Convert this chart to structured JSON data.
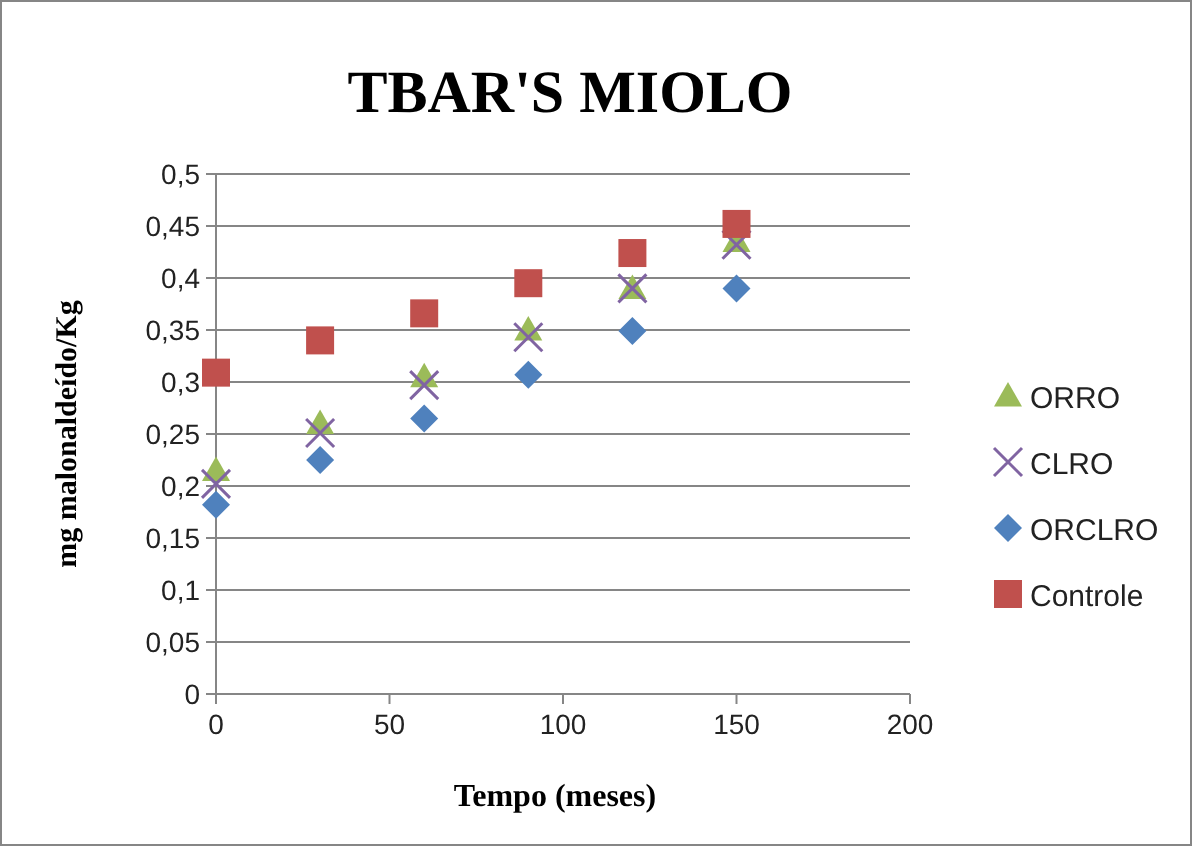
{
  "chart_data": {
    "type": "scatter",
    "title": "TBAR'S MIOLO",
    "xlabel": "Tempo (meses)",
    "ylabel": "mg malonaldeído/Kg",
    "x": [
      0,
      30,
      60,
      90,
      120,
      150
    ],
    "series": [
      {
        "name": "ORRO",
        "color": "#9bbb59",
        "marker": "triangle",
        "values": [
          0.215,
          0.26,
          0.305,
          0.35,
          0.39,
          0.435
        ]
      },
      {
        "name": "CLRO",
        "color": "#8064a2",
        "marker": "cross",
        "values": [
          0.202,
          0.251,
          0.297,
          0.343,
          0.39,
          0.432
        ]
      },
      {
        "name": "ORCLRO",
        "color": "#4f81bd",
        "marker": "diamond",
        "values": [
          0.182,
          0.225,
          0.265,
          0.307,
          0.349,
          0.39
        ]
      },
      {
        "name": "Controle",
        "color": "#c0504d",
        "marker": "square",
        "values": [
          0.309,
          0.34,
          0.366,
          0.395,
          0.424,
          0.452
        ]
      }
    ],
    "xlim": [
      0,
      200
    ],
    "xticks": [
      0,
      50,
      100,
      150,
      200
    ],
    "ylim": [
      0,
      0.5
    ],
    "yticks": [
      0,
      {
        "value": 0.05,
        "label": "0,05"
      },
      {
        "value": 0.1,
        "label": "0,1"
      },
      {
        "value": 0.15,
        "label": "0,15"
      },
      {
        "value": 0.2,
        "label": "0,2"
      },
      {
        "value": 0.25,
        "label": "0,25"
      },
      {
        "value": 0.3,
        "label": "0,3"
      },
      {
        "value": 0.35,
        "label": "0,35"
      },
      {
        "value": 0.4,
        "label": "0,4"
      },
      {
        "value": 0.45,
        "label": "0,45"
      },
      {
        "value": 0.5,
        "label": "0,5"
      }
    ],
    "grid": "y",
    "legend": "right"
  }
}
